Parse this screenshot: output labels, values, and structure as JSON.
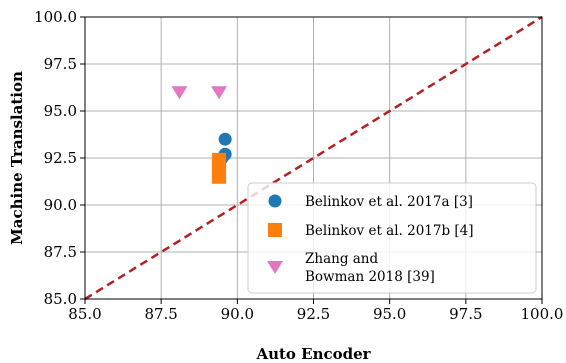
{
  "chart_data": {
    "type": "scatter",
    "xlabel": "Auto Encoder",
    "ylabel": "Machine Translation",
    "xlim": [
      85.0,
      100.0
    ],
    "ylim": [
      85.0,
      100.0
    ],
    "xticks": [
      "85.0",
      "87.5",
      "90.0",
      "92.5",
      "95.0",
      "97.5",
      "100.0"
    ],
    "yticks": [
      "85.0",
      "87.5",
      "90.0",
      "92.5",
      "95.0",
      "97.5",
      "100.0"
    ],
    "grid": true,
    "legend_position": "bottom-right",
    "reference_line": {
      "style": "dashed",
      "color": "#b22222",
      "from": [
        85.0,
        85.0
      ],
      "to": [
        100.0,
        100.0
      ]
    },
    "series": [
      {
        "name": "Belinkov et al. 2017a [3]",
        "marker": "circle",
        "color": "#1f77b4",
        "points": [
          [
            89.6,
            93.5
          ],
          [
            89.6,
            92.7
          ],
          [
            89.5,
            92.5
          ]
        ]
      },
      {
        "name": "Belinkov et al. 2017b [4]",
        "marker": "square",
        "color": "#ff7f0e",
        "points": [
          [
            89.4,
            92.4
          ],
          [
            89.4,
            92.1
          ],
          [
            89.4,
            91.8
          ],
          [
            89.4,
            91.5
          ]
        ]
      },
      {
        "name": "Zhang and Bowman 2018 [39]",
        "legend_lines": [
          "Zhang and",
          "Bowman 2018 [39]"
        ],
        "marker": "triangle-down",
        "color": "#e377c2",
        "points": [
          [
            88.1,
            96.0
          ],
          [
            89.4,
            96.0
          ]
        ]
      }
    ]
  }
}
